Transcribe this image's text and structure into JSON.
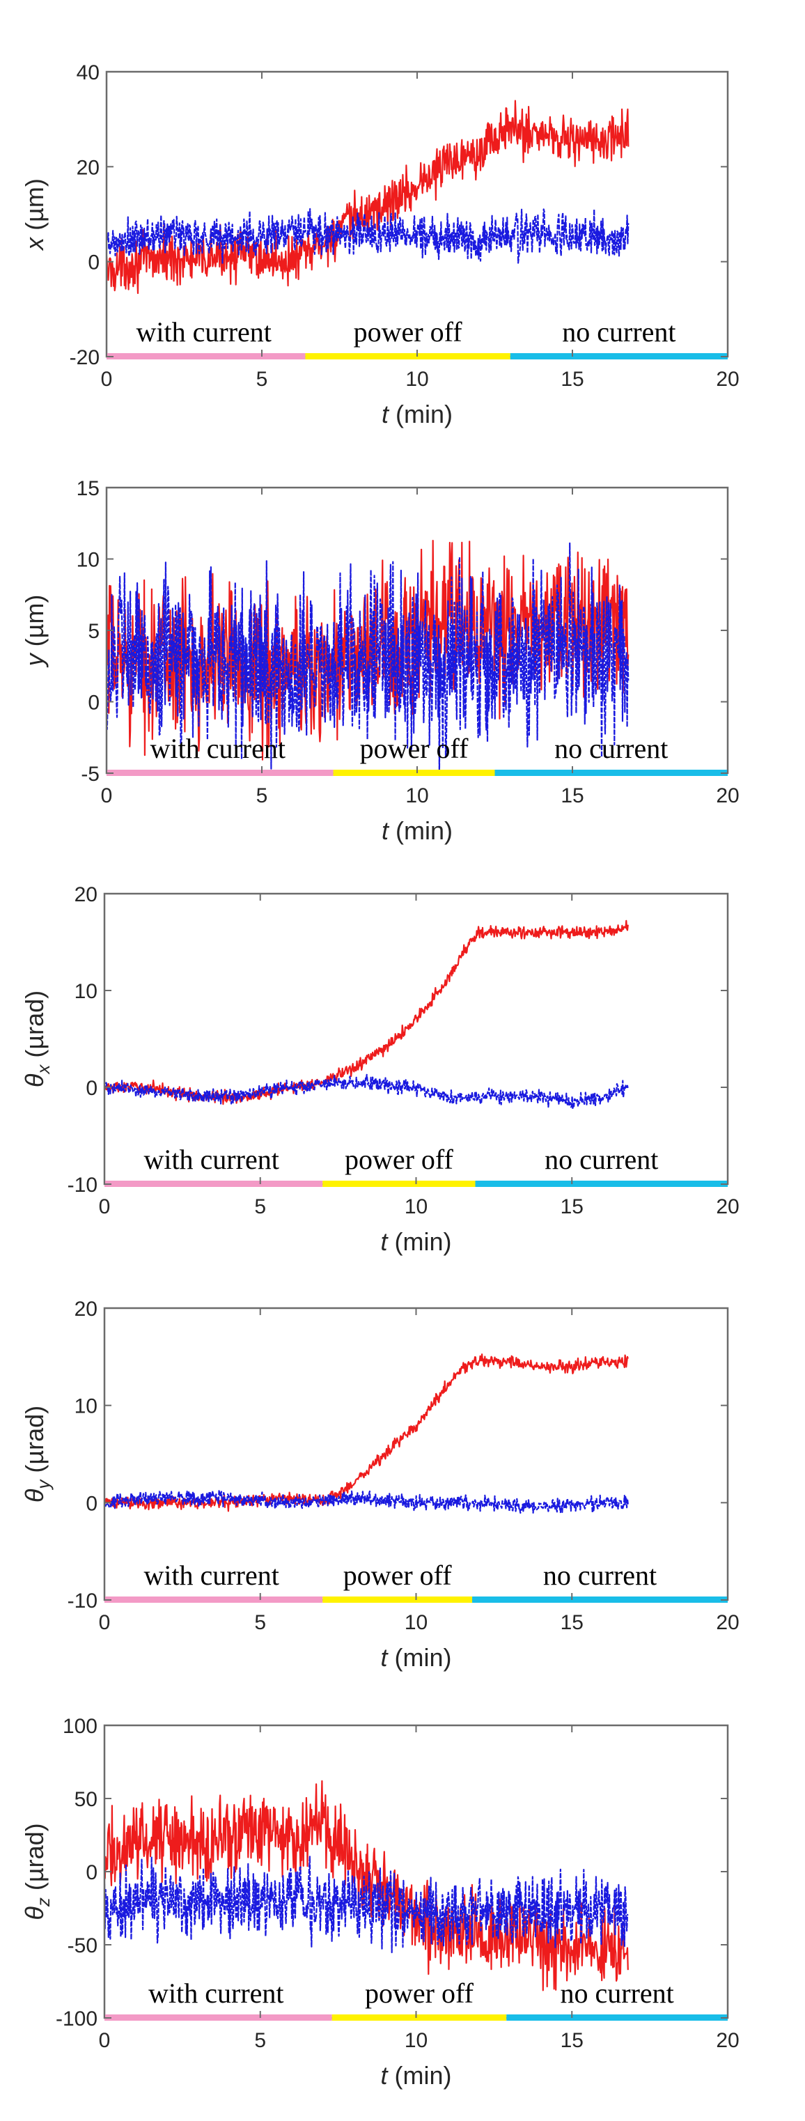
{
  "figure": {
    "colors": {
      "red": "#ee1c1c",
      "blue": "#1a1adf",
      "pink": "#f39ac6",
      "yellow": "#fff200",
      "cyan": "#19bde8",
      "axis": "#6b6b6b"
    }
  },
  "chart_data": [
    {
      "type": "line",
      "ylabel_var": "x",
      "ylabel_unit": " (µm)",
      "xlabel_var": "t",
      "xlabel_unit": " (min)",
      "xlim": [
        0,
        20
      ],
      "ylim": [
        -20,
        40
      ],
      "xticks": [
        "0",
        "5",
        "10",
        "15",
        "20"
      ],
      "yticks": [
        "-20",
        "0",
        "20",
        "40"
      ],
      "phase_labels": [
        "with current",
        "power off",
        "no current"
      ],
      "phase_boundaries": [
        0,
        6.4,
        13.0,
        20
      ],
      "series": [
        {
          "name": "red",
          "color": "#ee1c1c",
          "x": [
            0,
            1,
            2,
            3,
            4,
            5,
            6,
            7,
            8,
            9,
            10,
            11,
            12,
            13,
            14,
            15,
            16,
            16.8
          ],
          "y": [
            -2,
            0,
            1,
            0,
            2,
            1,
            0,
            4,
            9,
            12,
            16,
            21,
            24,
            28,
            27,
            26,
            25,
            27
          ],
          "noise": 2.5
        },
        {
          "name": "blue",
          "color": "#1a1adf",
          "x": [
            0,
            2,
            4,
            6,
            8,
            10,
            12,
            14,
            16,
            16.8
          ],
          "y": [
            3,
            6,
            5,
            6,
            6,
            6,
            5,
            6,
            5,
            5
          ],
          "noise": 2.2
        }
      ]
    },
    {
      "type": "line",
      "ylabel_var": "y",
      "ylabel_unit": " (µm)",
      "xlabel_var": "t",
      "xlabel_unit": " (min)",
      "xlim": [
        0,
        20
      ],
      "ylim": [
        -5,
        15
      ],
      "xticks": [
        "0",
        "5",
        "10",
        "15",
        "20"
      ],
      "yticks": [
        "-5",
        "0",
        "5",
        "10",
        "15"
      ],
      "phase_labels": [
        "with current",
        "power off",
        "no current"
      ],
      "phase_boundaries": [
        0,
        7.3,
        12.5,
        20
      ],
      "series": [
        {
          "name": "red",
          "color": "#ee1c1c",
          "x": [
            0,
            2,
            4,
            6,
            8,
            10,
            11,
            12,
            14,
            16,
            16.8
          ],
          "y": [
            3,
            3,
            3,
            2,
            3,
            4,
            6,
            5,
            5,
            6,
            6
          ],
          "noise": 2.5
        },
        {
          "name": "blue",
          "color": "#1a1adf",
          "x": [
            0,
            2,
            4,
            6,
            8,
            10,
            12,
            14,
            16,
            16.8
          ],
          "y": [
            3,
            3,
            3,
            2,
            3,
            3,
            3,
            3,
            3,
            3
          ],
          "noise": 2.8
        }
      ]
    },
    {
      "type": "line",
      "ylabel_var": "θx",
      "ylabel_unit": " (µrad)",
      "xlabel_var": "t",
      "xlabel_unit": " (min)",
      "xlim": [
        0,
        20
      ],
      "ylim": [
        -10,
        20
      ],
      "xticks": [
        "0",
        "5",
        "10",
        "15",
        "20"
      ],
      "yticks": [
        "-10",
        "0",
        "10",
        "20"
      ],
      "phase_labels": [
        "with current",
        "power off",
        "no current"
      ],
      "phase_boundaries": [
        0,
        7.0,
        11.9,
        20
      ],
      "series": [
        {
          "name": "red",
          "color": "#ee1c1c",
          "x": [
            0,
            1.5,
            3,
            4.5,
            6,
            7,
            8,
            9,
            10,
            11,
            11.5,
            12,
            13,
            14,
            15,
            16,
            16.8
          ],
          "y": [
            0,
            0,
            -1,
            -1,
            0,
            0.5,
            2,
            4,
            7,
            11,
            14,
            16,
            16,
            16,
            16,
            16,
            16.5
          ],
          "noise": 0.3
        },
        {
          "name": "blue",
          "color": "#1a1adf",
          "x": [
            0,
            2,
            4,
            6,
            8,
            10,
            11,
            12,
            14,
            15,
            16,
            16.8
          ],
          "y": [
            0,
            -0.5,
            -1,
            0,
            0.5,
            0,
            -1,
            -1,
            -1,
            -1.5,
            -1,
            0
          ],
          "noise": 0.35
        }
      ]
    },
    {
      "type": "line",
      "ylabel_var": "θy",
      "ylabel_unit": " (µrad)",
      "xlabel_var": "t",
      "xlabel_unit": " (min)",
      "xlim": [
        0,
        20
      ],
      "ylim": [
        -10,
        20
      ],
      "xticks": [
        "0",
        "5",
        "10",
        "15",
        "20"
      ],
      "yticks": [
        "-10",
        "0",
        "10",
        "20"
      ],
      "phase_labels": [
        "with current",
        "power off",
        "no current"
      ],
      "phase_boundaries": [
        0,
        7.0,
        11.8,
        20
      ],
      "series": [
        {
          "name": "red",
          "color": "#ee1c1c",
          "x": [
            0,
            2,
            4,
            6,
            7,
            8,
            9,
            10,
            11,
            11.5,
            12,
            13,
            14,
            15,
            16,
            16.8
          ],
          "y": [
            0,
            0,
            0,
            0.5,
            0,
            2,
            5,
            8,
            12,
            14,
            14.5,
            14.5,
            14,
            14,
            14.5,
            14.5
          ],
          "noise": 0.3
        },
        {
          "name": "blue",
          "color": "#1a1adf",
          "x": [
            0,
            2,
            4,
            6,
            8,
            10,
            12,
            14,
            16,
            16.8
          ],
          "y": [
            0,
            0.5,
            0.5,
            0,
            0.5,
            0,
            0,
            -0.5,
            0,
            0
          ],
          "noise": 0.35
        }
      ]
    },
    {
      "type": "line",
      "ylabel_var": "θz",
      "ylabel_unit": " (µrad)",
      "xlabel_var": "t",
      "xlabel_unit": " (min)",
      "xlim": [
        0,
        20
      ],
      "ylim": [
        -100,
        100
      ],
      "xticks": [
        "0",
        "5",
        "10",
        "15",
        "20"
      ],
      "yticks": [
        "-100",
        "-50",
        "0",
        "50",
        "100"
      ],
      "phase_labels": [
        "with current",
        "power off",
        "no current"
      ],
      "phase_boundaries": [
        0,
        7.3,
        12.9,
        20
      ],
      "series": [
        {
          "name": "red",
          "color": "#ee1c1c",
          "x": [
            0,
            1,
            2,
            3,
            4,
            5,
            6,
            7,
            8,
            9,
            10,
            11,
            12,
            13,
            14,
            15,
            16,
            16.8
          ],
          "y": [
            10,
            20,
            25,
            20,
            25,
            30,
            25,
            30,
            10,
            -10,
            -30,
            -40,
            -45,
            -40,
            -50,
            -50,
            -55,
            -55
          ],
          "noise": 13
        },
        {
          "name": "blue",
          "color": "#1a1adf",
          "x": [
            0,
            2,
            4,
            6,
            8,
            10,
            12,
            14,
            16,
            16.8
          ],
          "y": [
            -25,
            -20,
            -20,
            -20,
            -20,
            -30,
            -30,
            -25,
            -25,
            -25
          ],
          "noise": 12
        }
      ]
    }
  ]
}
